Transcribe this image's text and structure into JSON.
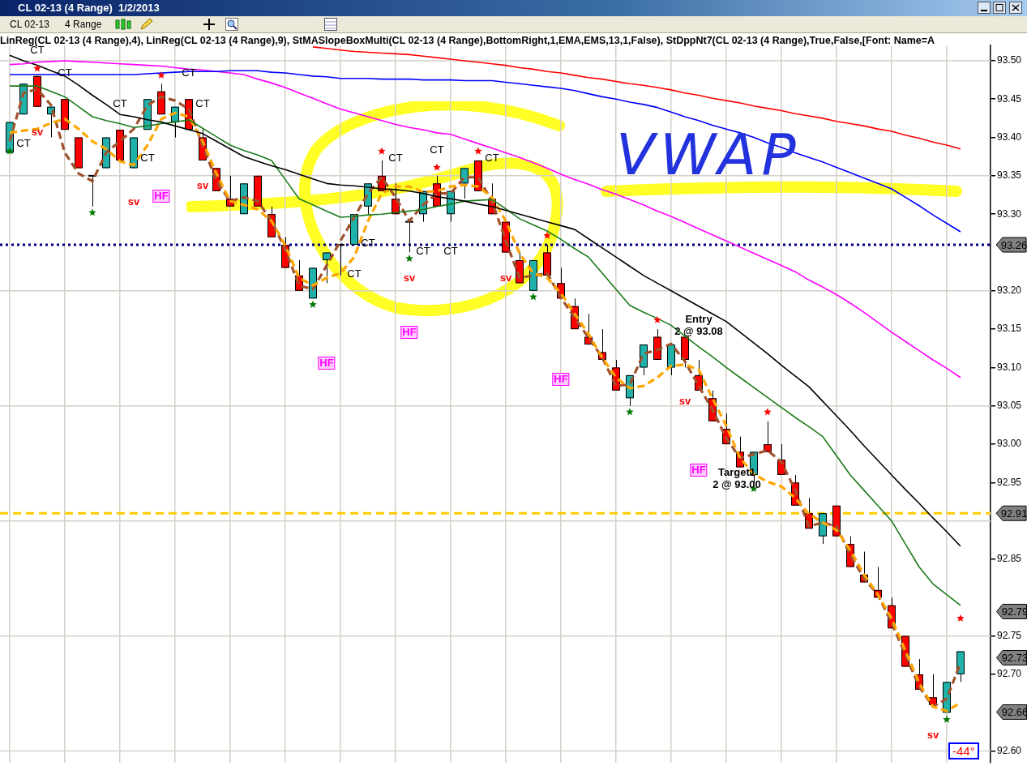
{
  "chart_data": {
    "type": "candlestick",
    "title": "CL 02-13 (4 Range)  1/2/2013",
    "subtitle": "LinReg(CL 02-13 (4 Range),4), LinReg(CL 02-13 (4 Range),9), StMASlopeBoxMulti(CL 02-13 (4 Range),BottomRight,1,EMA,EMS,13,1,False), StDppNt7(CL 02-13 (4 Range),True,False,[Font: Name=A",
    "categories": [
      null,
      null,
      null,
      null,
      null,
      null,
      null,
      null,
      null,
      null,
      null,
      null,
      null,
      null,
      null,
      null,
      null,
      null,
      null,
      null,
      null,
      null,
      null,
      null,
      null,
      null,
      null,
      null,
      null,
      null,
      null,
      null,
      null,
      null,
      null,
      null,
      null,
      null,
      null,
      null,
      null,
      null,
      null,
      null,
      null,
      null,
      null,
      null,
      null,
      null,
      null,
      null,
      null,
      null,
      null,
      null,
      null,
      null,
      null,
      null,
      null,
      null,
      null,
      null,
      null,
      null,
      null,
      null,
      null,
      null
    ],
    "ylim": [
      92.585,
      93.52
    ],
    "yticks": [
      {
        "value": 92.6,
        "label": "92.60"
      },
      {
        "value": 92.7,
        "label": "92.70"
      },
      {
        "value": 92.75,
        "label": "92.75"
      },
      {
        "value": 92.85,
        "label": "92.85"
      },
      {
        "value": 92.95,
        "label": "92.95"
      },
      {
        "value": 93.0,
        "label": "93.00"
      },
      {
        "value": 93.05,
        "label": "93.05"
      },
      {
        "value": 93.1,
        "label": "93.10"
      },
      {
        "value": 93.15,
        "label": "93.15"
      },
      {
        "value": 93.2,
        "label": "93.20"
      },
      {
        "value": 93.3,
        "label": "93.30"
      },
      {
        "value": 93.35,
        "label": "93.35"
      },
      {
        "value": 93.4,
        "label": "93.40"
      },
      {
        "value": 93.45,
        "label": "93.45"
      },
      {
        "value": 93.5,
        "label": "93.50"
      }
    ],
    "tick_labels": "y",
    "grid": true,
    "ohlc": [
      [
        93.38,
        93.42,
        93.38,
        93.42
      ],
      [
        93.43,
        93.47,
        93.43,
        93.47
      ],
      [
        93.48,
        93.48,
        93.44,
        93.44
      ],
      [
        93.43,
        93.44,
        93.4,
        93.44
      ],
      [
        93.45,
        93.45,
        93.41,
        93.41
      ],
      [
        93.4,
        93.4,
        93.36,
        93.36
      ],
      [
        93.35,
        93.35,
        93.31,
        93.35
      ],
      [
        93.36,
        93.4,
        93.36,
        93.4
      ],
      [
        93.41,
        93.41,
        93.37,
        93.37
      ],
      [
        93.36,
        93.4,
        93.36,
        93.4
      ],
      [
        93.41,
        93.45,
        93.41,
        93.45
      ],
      [
        93.46,
        93.47,
        93.43,
        93.43
      ],
      [
        93.42,
        93.44,
        93.4,
        93.44
      ],
      [
        93.45,
        93.45,
        93.41,
        93.41
      ],
      [
        93.4,
        93.41,
        93.37,
        93.37
      ],
      [
        93.36,
        93.36,
        93.33,
        93.33
      ],
      [
        93.32,
        93.35,
        93.31,
        93.31
      ],
      [
        93.3,
        93.34,
        93.3,
        93.34
      ],
      [
        93.35,
        93.35,
        93.31,
        93.31
      ],
      [
        93.3,
        93.31,
        93.27,
        93.27
      ],
      [
        93.26,
        93.27,
        93.23,
        93.23
      ],
      [
        93.22,
        93.24,
        93.2,
        93.2
      ],
      [
        93.19,
        93.23,
        93.19,
        93.23
      ],
      [
        93.24,
        93.25,
        93.21,
        93.25
      ],
      [
        93.26,
        93.26,
        93.22,
        93.26
      ],
      [
        93.26,
        93.3,
        93.26,
        93.3
      ],
      [
        93.31,
        93.34,
        93.3,
        93.34
      ],
      [
        93.35,
        93.37,
        93.33,
        93.33
      ],
      [
        93.32,
        93.34,
        93.3,
        93.3
      ],
      [
        93.29,
        93.29,
        93.25,
        93.29
      ],
      [
        93.3,
        93.33,
        93.29,
        93.33
      ],
      [
        93.34,
        93.35,
        93.31,
        93.31
      ],
      [
        93.3,
        93.33,
        93.29,
        93.33
      ],
      [
        93.34,
        93.36,
        93.32,
        93.36
      ],
      [
        93.37,
        93.37,
        93.33,
        93.33
      ],
      [
        93.32,
        93.34,
        93.3,
        93.3
      ],
      [
        93.29,
        93.29,
        93.25,
        93.25
      ],
      [
        93.24,
        93.25,
        93.21,
        93.21
      ],
      [
        93.2,
        93.24,
        93.2,
        93.24
      ],
      [
        93.25,
        93.26,
        93.22,
        93.22
      ],
      [
        93.21,
        93.23,
        93.19,
        93.19
      ],
      [
        93.18,
        93.19,
        93.15,
        93.15
      ],
      [
        93.14,
        93.17,
        93.13,
        93.13
      ],
      [
        93.12,
        93.15,
        93.11,
        93.11
      ],
      [
        93.1,
        93.11,
        93.07,
        93.07
      ],
      [
        93.06,
        93.09,
        93.05,
        93.09
      ],
      [
        93.1,
        93.13,
        93.09,
        93.13
      ],
      [
        93.14,
        93.15,
        93.11,
        93.11
      ],
      [
        93.1,
        93.13,
        93.09,
        93.13
      ],
      [
        93.14,
        93.14,
        93.1,
        93.11
      ],
      [
        93.09,
        93.11,
        93.07,
        93.07
      ],
      [
        93.06,
        93.07,
        93.03,
        93.03
      ],
      [
        93.02,
        93.04,
        93.0,
        93.0
      ],
      [
        92.99,
        93.01,
        92.97,
        92.97
      ],
      [
        92.96,
        92.99,
        92.95,
        92.99
      ],
      [
        93.0,
        93.03,
        92.99,
        92.99
      ],
      [
        92.98,
        93.0,
        92.96,
        92.96
      ],
      [
        92.95,
        92.96,
        92.92,
        92.92
      ],
      [
        92.91,
        92.93,
        92.89,
        92.89
      ],
      [
        92.88,
        92.91,
        92.87,
        92.91
      ],
      [
        92.92,
        92.92,
        92.88,
        92.88
      ],
      [
        92.87,
        92.88,
        92.84,
        92.84
      ],
      [
        92.83,
        92.86,
        92.82,
        92.82
      ],
      [
        92.81,
        92.84,
        92.8,
        92.8
      ],
      [
        92.79,
        92.8,
        92.76,
        92.76
      ],
      [
        92.75,
        92.75,
        92.71,
        92.71
      ],
      [
        92.7,
        92.72,
        92.68,
        92.68
      ],
      [
        92.67,
        92.7,
        92.66,
        92.66
      ],
      [
        92.65,
        92.69,
        92.65,
        92.69
      ],
      [
        92.7,
        92.73,
        92.69,
        92.73
      ]
    ],
    "colors": [
      "#20b2aa",
      "#20b2aa",
      "#ff0000",
      "#20b2aa",
      "#ff0000",
      "#ff0000",
      "#000000",
      "#20b2aa",
      "#ff0000",
      "#20b2aa",
      "#20b2aa",
      "#ff0000",
      "#20b2aa",
      "#ff0000",
      "#ff0000",
      "#ff0000",
      "#ff0000",
      "#20b2aa",
      "#ff0000",
      "#ff0000",
      "#ff0000",
      "#ff0000",
      "#20b2aa",
      "#20b2aa",
      "#000000",
      "#20b2aa",
      "#20b2aa",
      "#ff0000",
      "#ff0000",
      "#000000",
      "#20b2aa",
      "#ff0000",
      "#20b2aa",
      "#20b2aa",
      "#ff0000",
      "#ff0000",
      "#ff0000",
      "#ff0000",
      "#20b2aa",
      "#ff0000",
      "#ff0000",
      "#ff0000",
      "#ff0000",
      "#ff0000",
      "#ff0000",
      "#20b2aa",
      "#20b2aa",
      "#ff0000",
      "#20b2aa",
      "#ff0000",
      "#ff0000",
      "#ff0000",
      "#ff0000",
      "#ff0000",
      "#20b2aa",
      "#ff0000",
      "#ff0000",
      "#ff0000",
      "#ff0000",
      "#20b2aa",
      "#ff0000",
      "#ff0000",
      "#ff0000",
      "#ff0000",
      "#ff0000",
      "#ff0000",
      "#ff0000",
      "#ff0000",
      "#20b2aa",
      "#20b2aa"
    ],
    "series": [
      {
        "type": "line",
        "color": "#ff0000",
        "line_style": "solid",
        "values": [
          null,
          null,
          null,
          null,
          null,
          null,
          null,
          null,
          null,
          null,
          null,
          null,
          null,
          null,
          null,
          null,
          null,
          null,
          null,
          null,
          null,
          null,
          93.518,
          93.516,
          93.514,
          93.512,
          93.511,
          93.51,
          93.509,
          93.508,
          93.506,
          93.504,
          93.502,
          93.5,
          93.498,
          93.496,
          93.494,
          93.491,
          93.489,
          93.486,
          93.484,
          93.481,
          93.478,
          93.476,
          93.473,
          93.47,
          93.468,
          93.465,
          93.462,
          93.458,
          93.455,
          93.451,
          93.448,
          93.445,
          93.441,
          93.438,
          93.435,
          93.431,
          93.428,
          93.425,
          93.421,
          93.418,
          93.415,
          93.411,
          93.408,
          93.403,
          93.399,
          93.394,
          93.39,
          93.385
        ]
      },
      {
        "type": "line",
        "color": "#0000ff",
        "line_style": "solid",
        "values": [
          93.482,
          93.482,
          93.482,
          93.482,
          93.482,
          93.482,
          93.482,
          93.482,
          93.482,
          93.482,
          93.483,
          93.484,
          93.485,
          93.486,
          93.486,
          93.486,
          93.487,
          93.487,
          93.487,
          93.485,
          93.484,
          93.482,
          93.48,
          93.479,
          93.477,
          93.477,
          93.477,
          93.476,
          93.476,
          93.476,
          93.475,
          93.475,
          93.475,
          93.474,
          93.474,
          93.474,
          93.472,
          93.47,
          93.468,
          93.466,
          93.464,
          93.461,
          93.457,
          93.453,
          93.45,
          93.446,
          93.443,
          93.439,
          93.433,
          93.427,
          93.422,
          93.416,
          93.411,
          93.406,
          93.4,
          93.393,
          93.387,
          93.38,
          93.374,
          93.368,
          93.361,
          93.354,
          93.347,
          93.34,
          93.333,
          93.322,
          93.311,
          93.299,
          93.288,
          93.277
        ]
      },
      {
        "type": "line",
        "color": "#ff00ff",
        "line_style": "solid",
        "values": [
          93.495,
          93.496,
          93.498,
          93.499,
          93.5,
          93.499,
          93.498,
          93.497,
          93.496,
          93.495,
          93.494,
          93.493,
          93.491,
          93.489,
          93.488,
          93.486,
          93.484,
          93.482,
          93.476,
          93.471,
          93.465,
          93.458,
          93.451,
          93.444,
          93.437,
          93.432,
          93.427,
          93.422,
          93.417,
          93.413,
          93.41,
          93.406,
          93.404,
          93.398,
          93.392,
          93.386,
          93.38,
          93.374,
          93.367,
          93.36,
          93.352,
          93.345,
          93.339,
          93.332,
          93.326,
          93.319,
          93.312,
          93.304,
          93.297,
          93.289,
          93.281,
          93.273,
          93.265,
          93.257,
          93.249,
          93.241,
          93.233,
          93.225,
          93.214,
          93.205,
          93.195,
          93.184,
          93.172,
          93.159,
          93.146,
          93.134,
          93.122,
          93.11,
          93.099,
          93.087
        ]
      },
      {
        "type": "line",
        "color": "#000000",
        "line_style": "solid",
        "values": [
          93.507,
          93.5,
          93.494,
          93.487,
          93.48,
          93.468,
          93.455,
          93.443,
          93.43,
          93.427,
          93.423,
          93.42,
          93.415,
          93.41,
          93.405,
          93.395,
          93.385,
          93.375,
          93.369,
          93.363,
          93.358,
          93.352,
          93.346,
          93.34,
          93.338,
          93.337,
          93.335,
          93.333,
          93.332,
          93.33,
          93.327,
          93.323,
          93.32,
          93.317,
          93.313,
          93.31,
          93.305,
          93.3,
          93.295,
          93.29,
          93.285,
          93.28,
          93.268,
          93.256,
          93.244,
          93.232,
          93.22,
          93.21,
          93.2,
          93.19,
          93.18,
          93.17,
          93.16,
          93.146,
          93.132,
          93.118,
          93.103,
          93.089,
          93.075,
          93.056,
          93.037,
          93.018,
          92.998,
          92.979,
          92.96,
          92.941,
          92.923,
          92.904,
          92.886,
          92.867
        ]
      },
      {
        "type": "line",
        "color": "#1a7a1a",
        "line_style": "solid",
        "values": [
          93.467,
          93.467,
          93.467,
          93.46,
          93.453,
          93.44,
          93.427,
          93.422,
          93.418,
          93.413,
          93.415,
          93.418,
          93.42,
          93.423,
          93.412,
          93.401,
          93.39,
          93.383,
          93.377,
          93.37,
          93.345,
          93.32,
          93.312,
          93.304,
          93.296,
          93.297,
          93.299,
          93.3,
          93.302,
          93.304,
          93.306,
          93.31,
          93.313,
          93.317,
          93.318,
          93.319,
          93.307,
          93.294,
          93.286,
          93.278,
          93.267,
          93.255,
          93.244,
          93.223,
          93.202,
          93.181,
          93.172,
          93.164,
          93.155,
          93.141,
          93.127,
          93.114,
          93.1,
          93.087,
          93.074,
          93.061,
          93.048,
          93.035,
          93.023,
          93.01,
          92.985,
          92.96,
          92.94,
          92.92,
          92.9,
          92.87,
          92.84,
          92.818,
          92.804,
          92.79
        ]
      },
      {
        "type": "line",
        "color": "#ffa500",
        "line_style": "dashed",
        "values": [
          93.406,
          93.409,
          93.411,
          93.419,
          93.424,
          93.411,
          93.395,
          93.385,
          93.369,
          93.364,
          93.39,
          93.424,
          93.432,
          93.427,
          93.395,
          93.353,
          93.317,
          93.312,
          93.306,
          93.291,
          93.259,
          93.217,
          93.207,
          93.217,
          93.223,
          93.244,
          93.291,
          93.327,
          93.336,
          93.336,
          93.329,
          93.33,
          93.336,
          93.338,
          93.336,
          93.322,
          93.291,
          93.249,
          93.223,
          93.217,
          93.197,
          93.17,
          93.144,
          93.113,
          93.087,
          93.073,
          93.076,
          93.087,
          93.102,
          93.104,
          93.097,
          93.06,
          93.024,
          92.982,
          92.961,
          92.951,
          92.945,
          92.93,
          92.909,
          92.898,
          92.888,
          92.862,
          92.83,
          92.804,
          92.773,
          92.731,
          92.689,
          92.658,
          92.652,
          92.663
        ]
      },
      {
        "type": "line",
        "color": "#a0522d",
        "line_style": "dashed",
        "values": [
          93.395,
          93.458,
          93.463,
          93.442,
          93.38,
          93.353,
          93.343,
          93.38,
          93.395,
          93.411,
          93.442,
          93.453,
          93.448,
          93.437,
          93.39,
          93.343,
          93.317,
          93.322,
          93.317,
          93.291,
          93.254,
          93.207,
          93.202,
          93.233,
          93.265,
          93.296,
          93.327,
          93.348,
          93.322,
          93.291,
          93.312,
          93.327,
          93.327,
          93.348,
          93.348,
          93.317,
          93.265,
          93.217,
          93.22,
          93.223,
          93.191,
          93.165,
          93.139,
          93.113,
          93.076,
          93.078,
          93.118,
          93.123,
          93.131,
          93.108,
          93.076,
          93.045,
          93.008,
          92.982,
          92.987,
          92.992,
          92.977,
          92.94,
          92.893,
          92.898,
          92.893,
          92.856,
          92.825,
          92.804,
          92.767,
          92.726,
          92.684,
          92.658,
          92.668,
          92.715
        ]
      },
      {
        "type": "scatter",
        "color": "#ff0000",
        "marker": "star",
        "values": [
          null,
          null,
          93.49,
          null,
          null,
          null,
          null,
          null,
          null,
          null,
          null,
          93.481,
          null,
          null,
          null,
          null,
          null,
          null,
          null,
          null,
          null,
          null,
          null,
          null,
          null,
          null,
          null,
          93.382,
          null,
          null,
          null,
          93.361,
          null,
          null,
          93.382,
          null,
          null,
          null,
          null,
          93.272,
          null,
          null,
          null,
          null,
          null,
          null,
          null,
          93.162,
          null,
          null,
          null,
          null,
          null,
          null,
          null,
          93.042,
          null,
          null,
          null,
          null,
          null,
          null,
          null,
          null,
          null,
          null,
          null,
          null,
          null,
          92.773
        ]
      },
      {
        "type": "scatter",
        "color": "#007a00",
        "marker": "star",
        "values": [
          93.382,
          null,
          null,
          null,
          null,
          null,
          93.302,
          null,
          null,
          null,
          null,
          null,
          null,
          null,
          null,
          null,
          null,
          null,
          null,
          null,
          null,
          null,
          93.182,
          null,
          null,
          null,
          null,
          null,
          null,
          93.242,
          null,
          null,
          null,
          null,
          null,
          null,
          null,
          null,
          93.192,
          null,
          null,
          null,
          null,
          null,
          null,
          93.042,
          null,
          null,
          null,
          null,
          null,
          null,
          null,
          null,
          92.942,
          null,
          null,
          null,
          null,
          null,
          null,
          null,
          null,
          null,
          null,
          null,
          null,
          null,
          92.641,
          null
        ]
      }
    ],
    "ref_lines": [
      {
        "axis": "y",
        "value": 93.26,
        "label": "93.26",
        "color": "#000080",
        "line_style": "dotted"
      },
      {
        "axis": "y",
        "value": 92.91,
        "label": "92.91",
        "color": "#ffcc00",
        "line_style": "dashed"
      }
    ],
    "annotations": [
      "CL 02-13",
      "4 Range",
      "VWAP",
      "-44°",
      "Entry\n2 @ 93.08",
      "Target1\n2 @ 93.00",
      "92.79",
      "92.73",
      "92.66",
      "CT",
      "CT",
      "CT",
      "CT",
      "CT",
      "CT",
      "CT",
      "CT",
      "CT",
      "CT",
      "CT",
      "CT",
      "CT",
      "CT",
      "sv",
      "sv",
      "sv",
      "sv",
      "sv",
      "sv",
      "sv",
      "HF",
      "HF",
      "HF",
      "HF",
      "HF"
    ]
  }
}
